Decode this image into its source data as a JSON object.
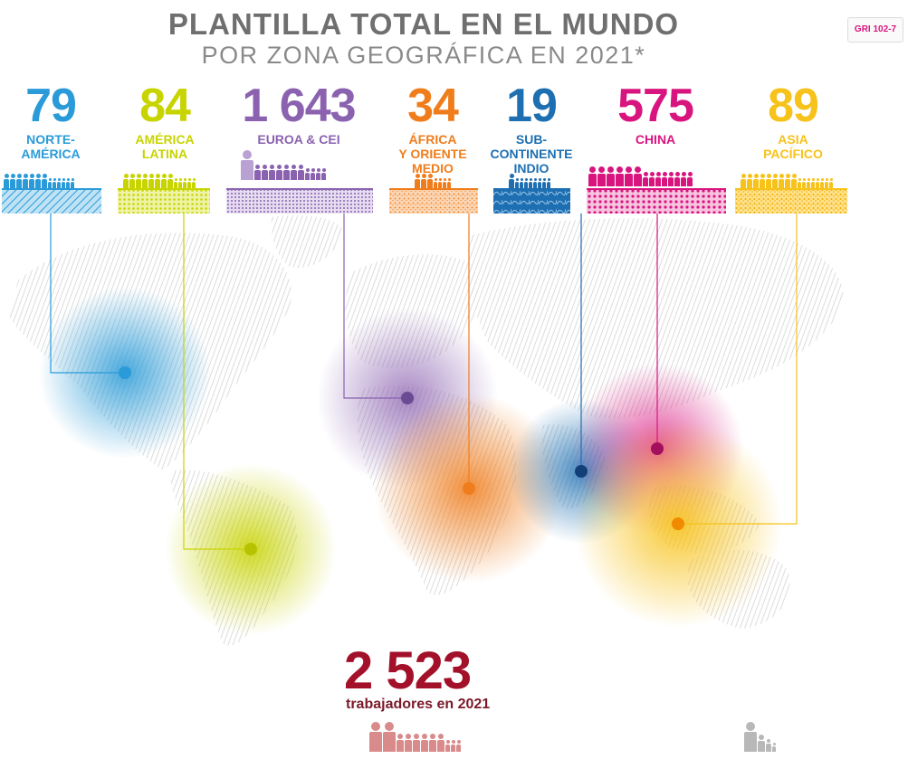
{
  "header": {
    "title": "PLANTILLA TOTAL EN EL MUNDO",
    "subtitle": "POR ZONA GEOGRÁFICA EN 2021*",
    "badge": "GRI 102-7"
  },
  "regions": [
    {
      "value": "79",
      "name_lines": [
        "NORTE-",
        "AMÉRICA"
      ],
      "color": "#2a9bd8",
      "pattern": "diagonal"
    },
    {
      "value": "84",
      "name_lines": [
        "AMÉRICA",
        "LATINA"
      ],
      "color": "#c8d400",
      "pattern": "dots"
    },
    {
      "value": "1 643",
      "name_lines": [
        "EUROA & CEI"
      ],
      "color": "#8b62b0",
      "pattern": "dots"
    },
    {
      "value": "34",
      "name_lines": [
        "ÁFRICA",
        "Y ORIENTE",
        "MEDIO"
      ],
      "color": "#f07d1c",
      "pattern": "speckle"
    },
    {
      "value": "19",
      "name_lines": [
        "SUB-",
        "CONTINENTE",
        "INDIO"
      ],
      "color": "#1d6fb2",
      "pattern": "scribble"
    },
    {
      "value": "575",
      "name_lines": [
        "CHINa"
      ],
      "color": "#d8157f",
      "pattern": "dots"
    },
    {
      "value": "89",
      "name_lines": [
        "ASIA",
        "PACÍFICO"
      ],
      "color": "#f7c21a",
      "pattern": "speckle"
    }
  ],
  "total": {
    "value": "2 523",
    "label": "trabajadores en 2021",
    "color": "#a3102a"
  },
  "icons": {
    "person": "person-icon",
    "map": "world-map",
    "location": "location-dot-icon"
  }
}
